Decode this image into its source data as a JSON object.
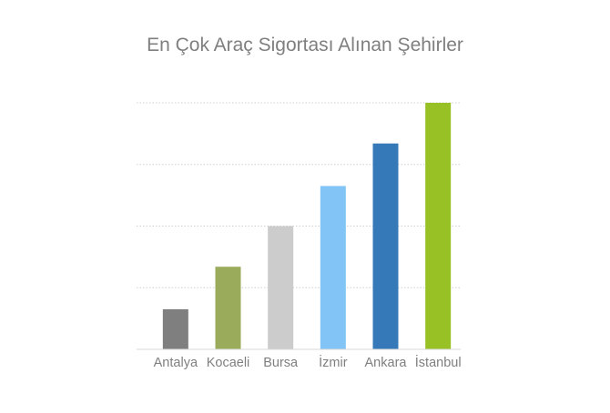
{
  "chart_data": {
    "type": "bar",
    "title": "En Çok Araç Sigortası Alınan Şehirler",
    "categories": [
      "Antalya",
      "Kocaeli",
      "Bursa",
      "İzmir",
      "Ankara",
      "İstanbul"
    ],
    "values": [
      0.65,
      1.34,
      2.0,
      2.65,
      3.34,
      4.0
    ],
    "colors": [
      "#7f7f7f",
      "#9aab5c",
      "#cccccc",
      "#82c4f5",
      "#3579b8",
      "#97c125"
    ],
    "ylim": [
      0,
      4
    ],
    "y_axis_labels_shown": false,
    "gridlines": "horizontal-dotted",
    "gridline_count": 4,
    "xlabel": "",
    "ylabel": ""
  }
}
